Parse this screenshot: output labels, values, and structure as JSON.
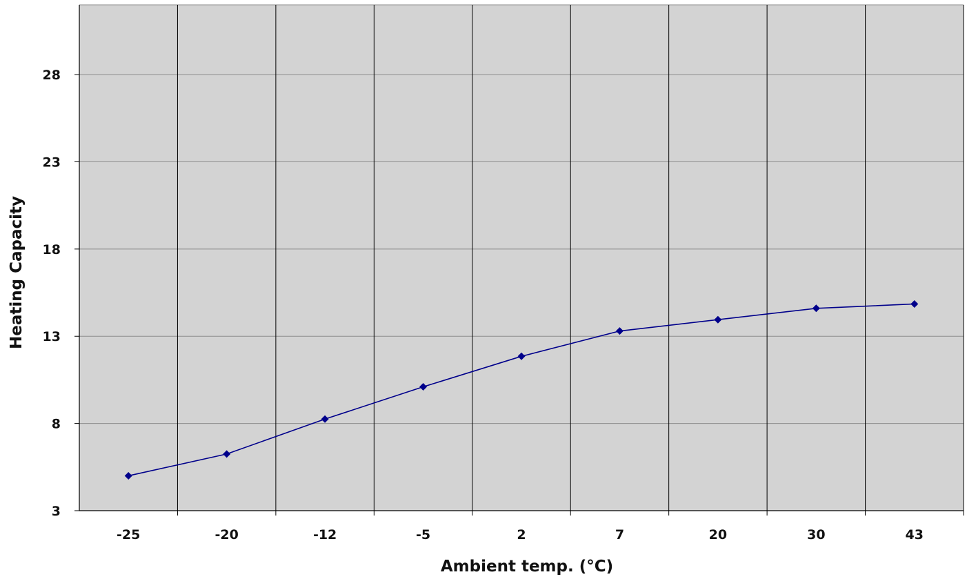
{
  "chart_data": {
    "type": "line",
    "title": "",
    "xlabel": "Ambient temp. (°C)",
    "ylabel": "Heating Capacity",
    "categories": [
      "-25",
      "-20",
      "-12",
      "-5",
      "2",
      "7",
      "20",
      "30",
      "43"
    ],
    "series": [
      {
        "values": [
          5.0,
          6.25,
          8.25,
          10.1,
          11.85,
          13.3,
          13.95,
          14.6,
          14.85
        ],
        "color": "#00008b",
        "marker": "diamond"
      }
    ],
    "ylim": [
      3,
      32
    ],
    "yticks": [
      3,
      8,
      13,
      18,
      23,
      28
    ],
    "grid": true,
    "legend": "none",
    "plot_background": "#d3d3d3",
    "gridline_horizontal_color": "#8c8c8c",
    "gridline_vertical_color": "#000000"
  }
}
